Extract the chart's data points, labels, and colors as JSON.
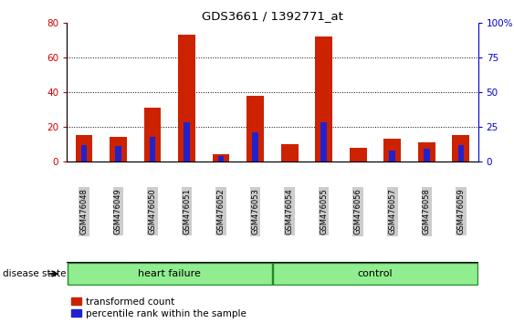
{
  "title": "GDS3661 / 1392771_at",
  "samples": [
    "GSM476048",
    "GSM476049",
    "GSM476050",
    "GSM476051",
    "GSM476052",
    "GSM476053",
    "GSM476054",
    "GSM476055",
    "GSM476056",
    "GSM476057",
    "GSM476058",
    "GSM476059"
  ],
  "red_values": [
    15,
    14,
    31,
    73,
    4,
    38,
    10,
    72,
    8,
    13,
    11,
    15
  ],
  "blue_values": [
    12,
    11,
    18,
    28,
    4,
    21,
    0,
    28,
    0,
    8,
    9,
    12
  ],
  "ylim_left": [
    0,
    80
  ],
  "ylim_right": [
    0,
    100
  ],
  "yticks_left": [
    0,
    20,
    40,
    60,
    80
  ],
  "yticks_right": [
    0,
    25,
    50,
    75,
    100
  ],
  "ytick_labels_right": [
    "0",
    "25",
    "50",
    "75",
    "100%"
  ],
  "left_axis_color": "#cc0000",
  "right_axis_color": "#0000cc",
  "red_color": "#cc2200",
  "blue_color": "#2222cc",
  "label_red": "transformed count",
  "label_blue": "percentile rank within the sample",
  "disease_state_label": "disease state",
  "group_hf_label": "heart failure",
  "group_ctrl_label": "control",
  "group_bg": "#90ee90",
  "group_border": "#228B22",
  "tick_label_bg": "#cccccc",
  "hf_count": 6,
  "ctrl_count": 6
}
